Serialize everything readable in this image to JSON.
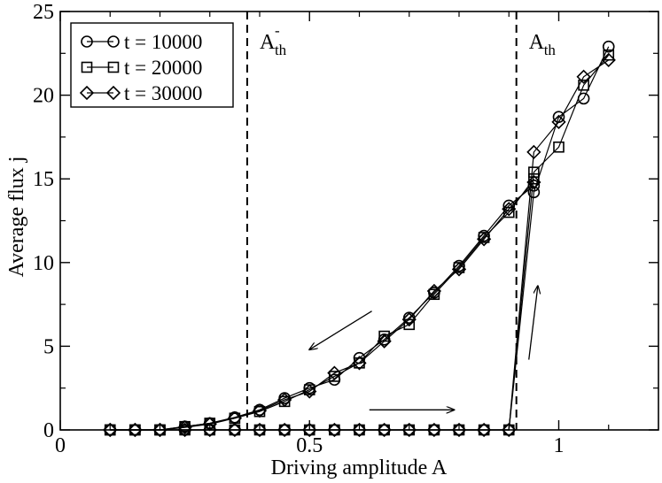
{
  "chart_data": {
    "type": "line",
    "xlabel": "Driving amplitude A",
    "ylabel": "Average flux j",
    "xlim": [
      0,
      1.2
    ],
    "ylim": [
      0,
      25
    ],
    "xticks": [
      0,
      0.5,
      1
    ],
    "xtick_labels": [
      "0",
      "0.5",
      "1"
    ],
    "yticks": [
      0,
      5,
      10,
      15,
      20,
      25
    ],
    "ytick_labels": [
      "0",
      "5",
      "10",
      "15",
      "20",
      "25"
    ],
    "grid": false,
    "legend_position": "top-left",
    "series": [
      {
        "name": "t = 10000",
        "marker": "circle",
        "up_branch": {
          "x": [
            0.1,
            0.15,
            0.2,
            0.25,
            0.3,
            0.35,
            0.4,
            0.45,
            0.5,
            0.55,
            0.6,
            0.65,
            0.7,
            0.75,
            0.8,
            0.85,
            0.9,
            0.95,
            1.0,
            1.05,
            1.1
          ],
          "y": [
            0,
            0,
            0,
            0,
            0,
            0,
            0,
            0,
            0,
            0,
            0,
            0,
            0,
            0,
            0,
            0,
            0,
            14.2,
            18.7,
            19.8,
            22.9
          ]
        },
        "down_branch": {
          "x": [
            0.95,
            0.9,
            0.85,
            0.8,
            0.75,
            0.7,
            0.65,
            0.6,
            0.55,
            0.5,
            0.45,
            0.4,
            0.35,
            0.3,
            0.25,
            0.2,
            0.15,
            0.1
          ],
          "y": [
            14.6,
            13.4,
            11.6,
            9.8,
            8.2,
            6.7,
            5.4,
            4.3,
            3.0,
            2.5,
            1.9,
            1.2,
            0.75,
            0.4,
            0.2,
            0.0,
            0.0,
            0.0
          ]
        }
      },
      {
        "name": "t = 20000",
        "marker": "square",
        "up_branch": {
          "x": [
            0.1,
            0.15,
            0.2,
            0.25,
            0.3,
            0.35,
            0.4,
            0.45,
            0.5,
            0.55,
            0.6,
            0.65,
            0.7,
            0.75,
            0.8,
            0.85,
            0.9,
            0.95,
            1.0,
            1.05,
            1.1
          ],
          "y": [
            0,
            0,
            0,
            0,
            0,
            0,
            0,
            0,
            0,
            0,
            0,
            0,
            0,
            0,
            0,
            0,
            0,
            15.4,
            16.9,
            20.6,
            22.4
          ]
        },
        "down_branch": {
          "x": [
            0.95,
            0.9,
            0.85,
            0.8,
            0.75,
            0.7,
            0.65,
            0.6,
            0.55,
            0.5,
            0.45,
            0.4,
            0.35,
            0.3,
            0.25,
            0.2,
            0.15,
            0.1
          ],
          "y": [
            15.0,
            13.0,
            11.5,
            9.7,
            8.1,
            6.3,
            5.6,
            4.0,
            3.2,
            2.4,
            1.7,
            1.1,
            0.7,
            0.4,
            0.2,
            0.0,
            0.0,
            0.0
          ]
        }
      },
      {
        "name": "t = 30000",
        "marker": "diamond",
        "up_branch": {
          "x": [
            0.1,
            0.15,
            0.2,
            0.25,
            0.3,
            0.35,
            0.4,
            0.45,
            0.5,
            0.55,
            0.6,
            0.65,
            0.7,
            0.75,
            0.8,
            0.85,
            0.9,
            0.95,
            1.0,
            1.05,
            1.1
          ],
          "y": [
            0,
            0,
            0,
            0,
            0,
            0,
            0,
            0,
            0,
            0,
            0,
            0,
            0,
            0,
            0,
            0,
            0,
            16.6,
            18.4,
            21.1,
            22.1
          ]
        },
        "down_branch": {
          "x": [
            0.95,
            0.9,
            0.85,
            0.8,
            0.75,
            0.7,
            0.65,
            0.6,
            0.55,
            0.5,
            0.45,
            0.4,
            0.35,
            0.3,
            0.25,
            0.2,
            0.15,
            0.1
          ],
          "y": [
            14.8,
            13.2,
            11.4,
            9.6,
            8.3,
            6.6,
            5.3,
            4.0,
            3.4,
            2.3,
            1.8,
            1.15,
            0.7,
            0.35,
            0.15,
            0.0,
            0.0,
            0.0
          ]
        }
      }
    ],
    "threshold_lines": [
      {
        "x": 0.375,
        "style": "dashed",
        "label_main": "A",
        "label_sup": "-",
        "label_sub": "th"
      },
      {
        "x": 0.915,
        "style": "dashed",
        "label_main": "A",
        "label_sup": "",
        "label_sub": "th"
      }
    ],
    "arrows": [
      {
        "name": "decreasing-branch-arrow",
        "from": [
          0.625,
          7.1
        ],
        "to": [
          0.5,
          4.8
        ]
      },
      {
        "name": "increasing-branch-arrow",
        "from": [
          0.62,
          1.2
        ],
        "to": [
          0.79,
          1.2
        ]
      },
      {
        "name": "jump-up-arrow",
        "from": [
          0.94,
          4.2
        ],
        "to": [
          0.958,
          8.6
        ]
      }
    ]
  }
}
